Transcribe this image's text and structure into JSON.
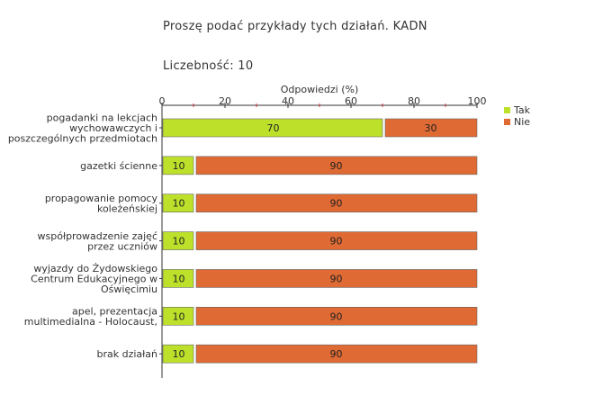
{
  "header": {
    "title": "Proszę podać przykłady tych działań. KADN",
    "count": "Liczebność: 10"
  },
  "chart_data": {
    "type": "bar",
    "orientation": "horizontal",
    "stacked": true,
    "xlabel": "Odpowiedzi (%)",
    "xlim": [
      0,
      100
    ],
    "xticks": [
      0,
      20,
      40,
      60,
      80,
      100
    ],
    "categories": [
      [
        "pogadanki na lekcjach",
        "wychowawczych i",
        "poszczególnych przedmiotach"
      ],
      [
        "gazetki ścienne"
      ],
      [
        "propagowanie pomocy",
        "koleżeńskiej"
      ],
      [
        "współprowadzenie zajęć",
        "przez uczniów"
      ],
      [
        "wyjazdy do Żydowskiego",
        "Centrum Edukacyjnego w",
        "Oświęcimiu"
      ],
      [
        "apel, prezentacja",
        "multimedialna - Holocaust,"
      ],
      [
        "brak działań"
      ]
    ],
    "series": [
      {
        "name": "Tak",
        "color": "#bde12a",
        "values": [
          70,
          10,
          10,
          10,
          10,
          10,
          10
        ]
      },
      {
        "name": "Nie",
        "color": "#e06a34",
        "values": [
          30,
          90,
          90,
          90,
          90,
          90,
          90
        ]
      }
    ],
    "legend": "top-right"
  }
}
